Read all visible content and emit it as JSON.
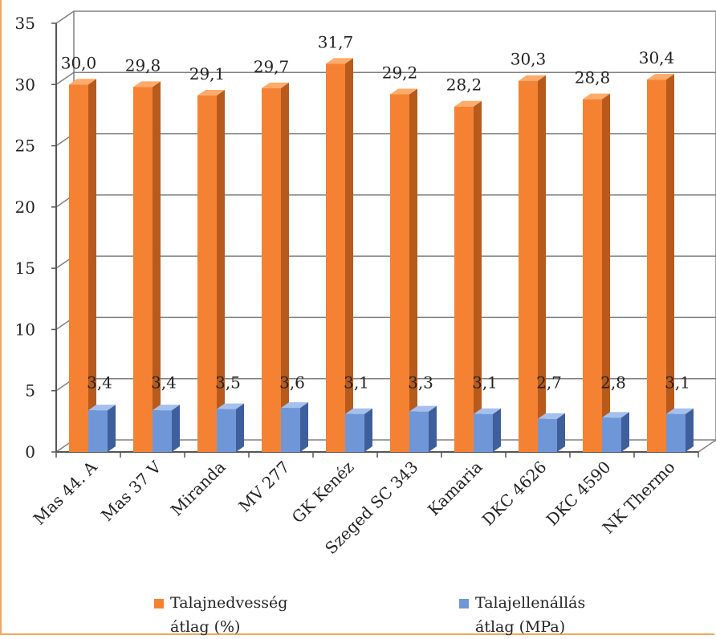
{
  "chart_data": {
    "type": "bar",
    "categories": [
      "Mas 44. A",
      "Mas 37 V",
      "Miranda",
      "MV 277",
      "GK Kenéz",
      "Szeged SC 343",
      "Kamaria",
      "DKC 4626",
      "DKC 4590",
      "NK Thermo"
    ],
    "series": [
      {
        "name": "Talajnedvesség\nátlag (%)",
        "color": "#f58233",
        "values": [
          30.0,
          29.8,
          29.1,
          29.7,
          31.7,
          29.2,
          28.2,
          30.3,
          28.8,
          30.4
        ],
        "labels": [
          "30,0",
          "29,8",
          "29,1",
          "29,7",
          "31,7",
          "29,2",
          "28,2",
          "30,3",
          "28,8",
          "30,4"
        ]
      },
      {
        "name": "Talajellenállás\nátlag (MPa)",
        "color": "#6f97d8",
        "values": [
          3.4,
          3.4,
          3.5,
          3.6,
          3.1,
          3.3,
          3.1,
          2.7,
          2.8,
          3.1
        ],
        "labels": [
          "3,4",
          "3,4",
          "3,5",
          "3,6",
          "3,1",
          "3,3",
          "3,1",
          "2,7",
          "2,8",
          "3,1"
        ]
      }
    ],
    "yticks": [
      "0",
      "5",
      "10",
      "15",
      "20",
      "25",
      "30",
      "35"
    ],
    "ylim": [
      0,
      35
    ],
    "grid": true,
    "legend_position": "bottom",
    "title": "",
    "xlabel": "",
    "ylabel": ""
  }
}
